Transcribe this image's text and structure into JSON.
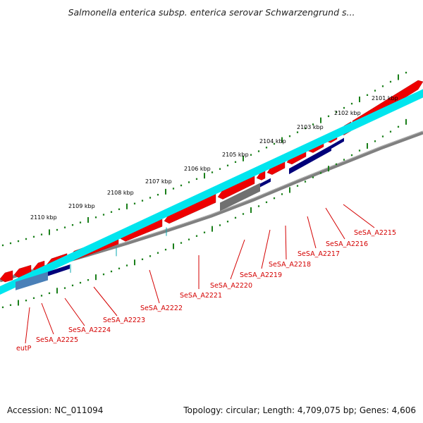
{
  "title": "Salmonella enterica subsp. enterica serovar Schwarzengrund s...",
  "footer": {
    "accession": "Accession: NC_011094",
    "summary": "Topology: circular; Length: 4,709,075 bp; Genes: 4,606"
  },
  "colors": {
    "backbone": "#808080",
    "forward_gene": "#ee0000",
    "reverse_gene": "#00e5ee",
    "navy_gene": "#00007a",
    "gray_gene": "#707070",
    "steel_gene": "#4a80b8",
    "tick": "#1a7f1a",
    "label": "#d40000"
  },
  "scale_labels": [
    "2101 kbp",
    "2102 kbp",
    "2103 kbp",
    "2104 kbp",
    "2105 kbp",
    "2106 kbp",
    "2107 kbp",
    "2108 kbp",
    "2109 kbp",
    "2110 kbp"
  ],
  "gene_labels": [
    "SeSA_A2215",
    "SeSA_A2216",
    "SeSA_A2217",
    "SeSA_A2218",
    "SeSA_A2219",
    "SeSA_A2220",
    "SeSA_A2221",
    "SeSA_A2222",
    "SeSA_A2223",
    "SeSA_A2224",
    "SeSA_A2225",
    "eutP"
  ]
}
